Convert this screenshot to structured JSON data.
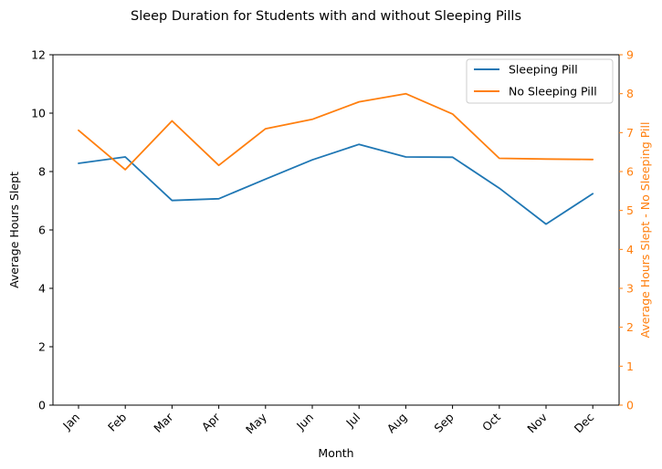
{
  "chart_data": {
    "type": "line",
    "title": "Sleep Duration for Students with and without Sleeping Pills",
    "xlabel": "Month",
    "ylabel": "Average Hours Slept",
    "y2label": "Average Hours Slept - No Sleeping Pill",
    "categories": [
      "Jan",
      "Feb",
      "Mar",
      "Apr",
      "May",
      "Jun",
      "Jul",
      "Aug",
      "Sep",
      "Oct",
      "Nov",
      "Dec"
    ],
    "ylim": [
      0,
      12
    ],
    "y2lim": [
      0,
      9
    ],
    "yticks": [
      "0",
      "2",
      "4",
      "6",
      "8",
      "10",
      "12"
    ],
    "y2ticks": [
      "0",
      "1",
      "2",
      "3",
      "4",
      "5",
      "6",
      "7",
      "8",
      "9"
    ],
    "grid": false,
    "legend_position": "top-right",
    "series": [
      {
        "name": "Sleeping Pill",
        "axis": "left",
        "color": "#1f77b4",
        "values": [
          8.28,
          8.5,
          7.01,
          7.07,
          7.74,
          8.4,
          8.93,
          8.5,
          8.49,
          7.43,
          6.2,
          7.24
        ]
      },
      {
        "name": "No Sleeping Pill",
        "axis": "right",
        "color": "#ff7f0e",
        "values": [
          7.06,
          6.05,
          7.3,
          6.16,
          7.1,
          7.34,
          7.79,
          8.0,
          7.48,
          6.34,
          6.32,
          6.31
        ]
      }
    ]
  }
}
